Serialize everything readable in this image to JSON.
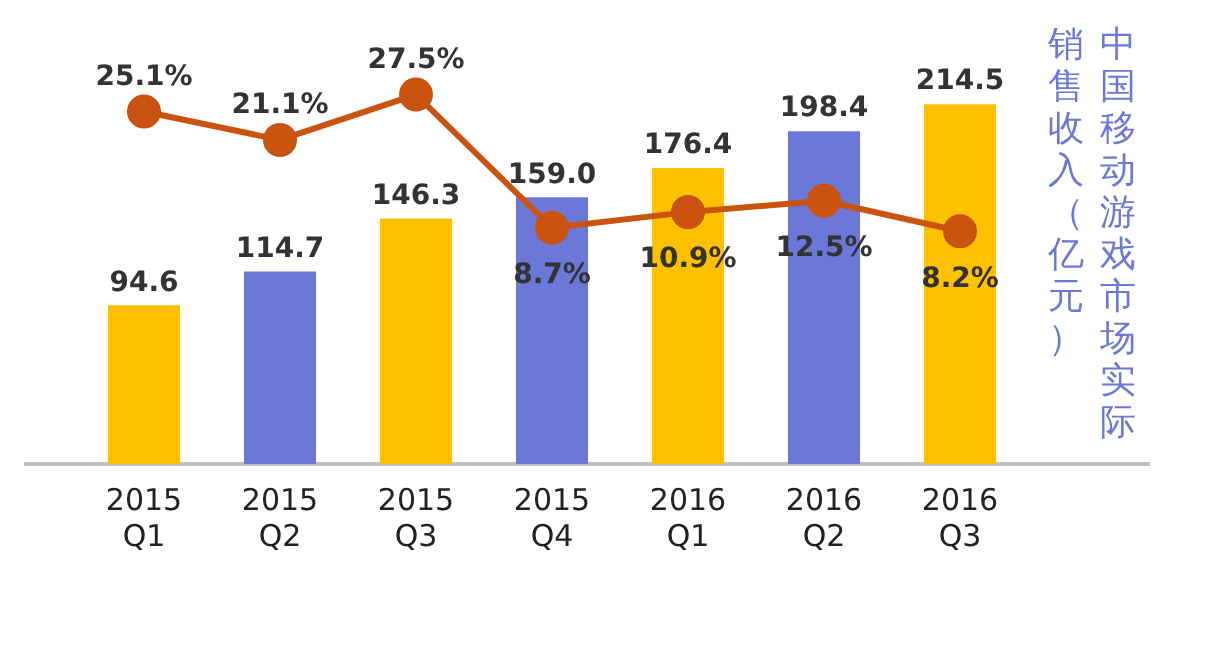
{
  "chart_data": {
    "type": "bar",
    "ylabel": "中国移动游戏市场实际销售收入（亿元）",
    "categories": [
      "2015 Q1",
      "2015 Q2",
      "2015 Q3",
      "2015 Q4",
      "2016 Q1",
      "2016 Q2",
      "2016 Q3"
    ],
    "tick_labels": "x",
    "grid": false,
    "legend": false,
    "series": [
      {
        "colors": [
          "#ffc000",
          "#6b78d8",
          "#ffc000",
          "#6b78d8",
          "#ffc000",
          "#6b78d8",
          "#ffc000"
        ],
        "values": [
          94.6,
          114.7,
          146.3,
          159.0,
          176.4,
          198.4,
          214.5
        ],
        "value_labels": [
          "94.6",
          "114.7",
          "146.3",
          "159.0",
          "176.4",
          "198.4",
          "214.5"
        ]
      },
      {
        "type": "line",
        "axis": "y2",
        "color": "#c9530f",
        "marker": "circle",
        "line_style": "solid",
        "values": [
          25.1,
          21.1,
          27.5,
          8.7,
          10.9,
          12.5,
          8.2
        ],
        "value_labels": [
          "25.1%",
          "21.1%",
          "27.5%",
          "8.7%",
          "10.9%",
          "12.5%",
          "8.2%"
        ]
      }
    ]
  }
}
